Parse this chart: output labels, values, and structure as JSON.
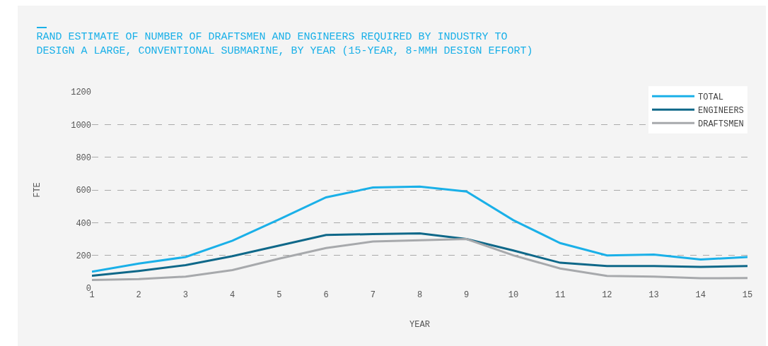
{
  "chart_data": {
    "type": "line",
    "title": "RAND ESTIMATE OF NUMBER OF DRAFTSMEN AND ENGINEERS REQUIRED BY INDUSTRY TO\nDESIGN A LARGE, CONVENTIONAL SUBMARINE, BY YEAR (15-YEAR, 8-MMH DESIGN EFFORT)",
    "xlabel": "YEAR",
    "ylabel": "FTE",
    "x": [
      1,
      2,
      3,
      4,
      5,
      6,
      7,
      8,
      9,
      10,
      11,
      12,
      13,
      14,
      15
    ],
    "series": [
      {
        "name": "TOTAL",
        "color": "#1ab0e8",
        "values": [
          100,
          150,
          190,
          290,
          420,
          555,
          615,
          620,
          590,
          415,
          275,
          200,
          205,
          175,
          190
        ]
      },
      {
        "name": "ENGINEERS",
        "color": "#0f6889",
        "values": [
          75,
          105,
          140,
          195,
          260,
          325,
          330,
          335,
          300,
          230,
          155,
          135,
          135,
          130,
          135
        ]
      },
      {
        "name": "DRAFTSMEN",
        "color": "#a7a9ac",
        "values": [
          50,
          55,
          70,
          110,
          180,
          245,
          285,
          292,
          300,
          200,
          120,
          75,
          70,
          60,
          62
        ]
      }
    ],
    "xlim": [
      1,
      15
    ],
    "xticks": [
      1,
      2,
      3,
      4,
      5,
      6,
      7,
      8,
      9,
      10,
      11,
      12,
      13,
      14,
      15
    ],
    "ylim": [
      0,
      1200
    ],
    "yticks": [
      0,
      200,
      400,
      600,
      800,
      1000,
      1200
    ],
    "grid": "y",
    "legend": "top right",
    "marker": "none",
    "line_style": "solid"
  }
}
